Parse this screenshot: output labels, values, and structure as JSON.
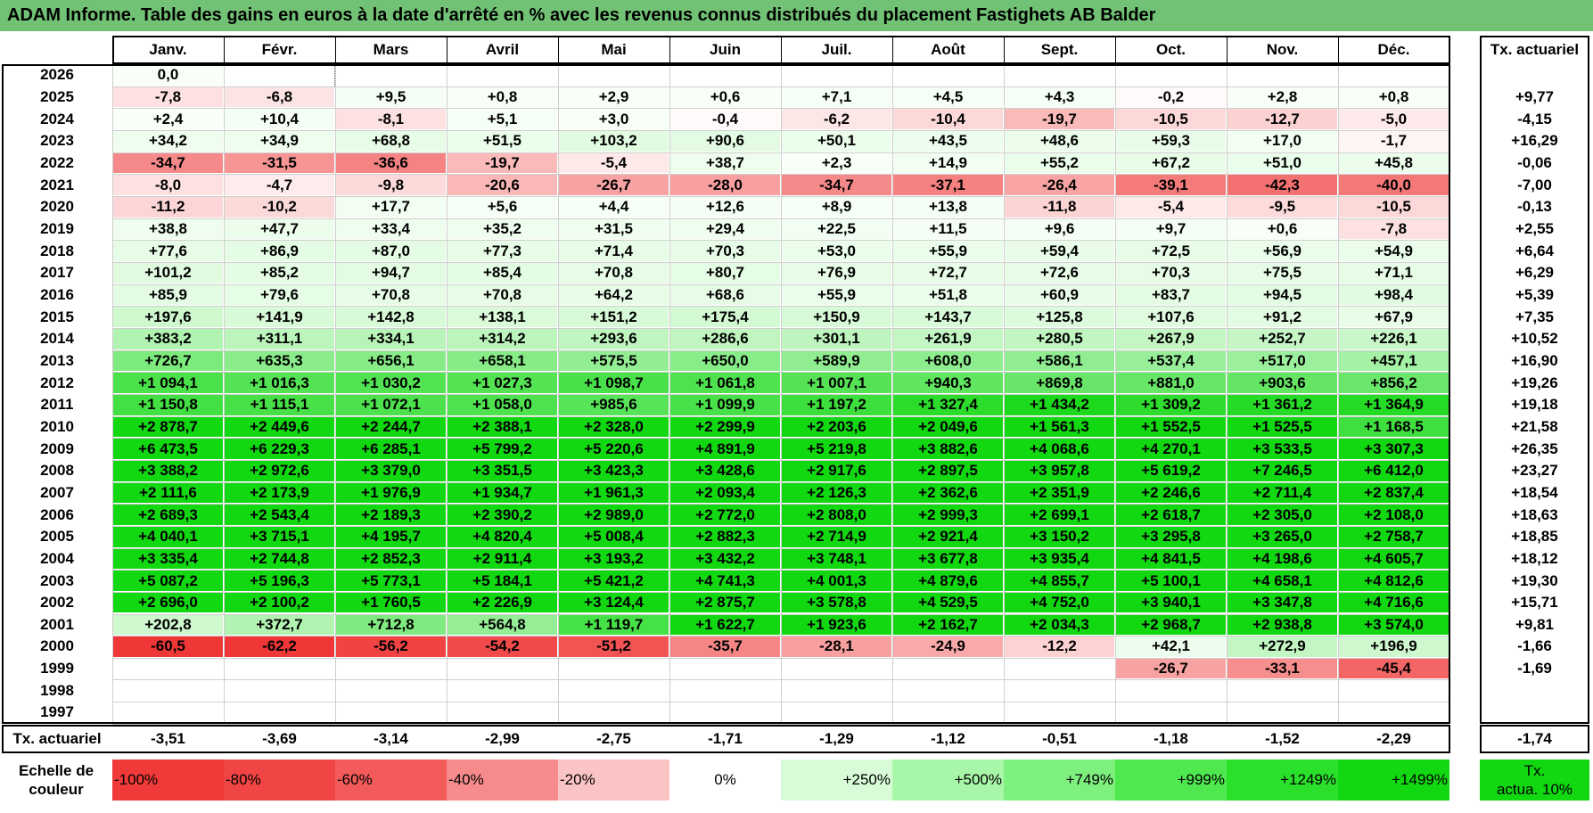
{
  "title": "ADAM Informe. Table des gains en euros à la date d'arrêté en % avec les revenus connus distribués du placement Fastighets AB Balder",
  "months": [
    "Janv.",
    "Févr.",
    "Mars",
    "Avril",
    "Mai",
    "Juin",
    "Juil.",
    "Août",
    "Sept.",
    "Oct.",
    "Nov.",
    "Déc."
  ],
  "annual_header": "Tx. actuariel",
  "rows": [
    {
      "year": "2026",
      "values": [
        "0,0",
        null,
        null,
        null,
        null,
        null,
        null,
        null,
        null,
        null,
        null,
        null
      ],
      "annual": ""
    },
    {
      "year": "2025",
      "values": [
        "-7,8",
        "-6,8",
        "+9,5",
        "+0,8",
        "+2,9",
        "+0,6",
        "+7,1",
        "+4,5",
        "+4,3",
        "-0,2",
        "+2,8",
        "+0,8"
      ],
      "annual": "+9,77"
    },
    {
      "year": "2024",
      "values": [
        "+2,4",
        "+10,4",
        "-8,1",
        "+5,1",
        "+3,0",
        "-0,4",
        "-6,2",
        "-10,4",
        "-19,7",
        "-10,5",
        "-12,7",
        "-5,0"
      ],
      "annual": "-4,15"
    },
    {
      "year": "2023",
      "values": [
        "+34,2",
        "+34,9",
        "+68,8",
        "+51,5",
        "+103,2",
        "+90,6",
        "+50,1",
        "+43,5",
        "+48,6",
        "+59,3",
        "+17,0",
        "-1,7"
      ],
      "annual": "+16,29"
    },
    {
      "year": "2022",
      "values": [
        "-34,7",
        "-31,5",
        "-36,6",
        "-19,7",
        "-5,4",
        "+38,7",
        "+2,3",
        "+14,9",
        "+55,2",
        "+67,2",
        "+51,0",
        "+45,8"
      ],
      "annual": "-0,06"
    },
    {
      "year": "2021",
      "values": [
        "-8,0",
        "-4,7",
        "-9,8",
        "-20,6",
        "-26,7",
        "-28,0",
        "-34,7",
        "-37,1",
        "-26,4",
        "-39,1",
        "-42,3",
        "-40,0"
      ],
      "annual": "-7,00"
    },
    {
      "year": "2020",
      "values": [
        "-11,2",
        "-10,2",
        "+17,7",
        "+5,6",
        "+4,4",
        "+12,6",
        "+8,9",
        "+13,8",
        "-11,8",
        "-5,4",
        "-9,5",
        "-10,5"
      ],
      "annual": "-0,13"
    },
    {
      "year": "2019",
      "values": [
        "+38,8",
        "+47,7",
        "+33,4",
        "+35,2",
        "+31,5",
        "+29,4",
        "+22,5",
        "+11,5",
        "+9,6",
        "+9,7",
        "+0,6",
        "-7,8"
      ],
      "annual": "+2,55"
    },
    {
      "year": "2018",
      "values": [
        "+77,6",
        "+86,9",
        "+87,0",
        "+77,3",
        "+71,4",
        "+70,3",
        "+53,0",
        "+55,9",
        "+59,4",
        "+72,5",
        "+56,9",
        "+54,9"
      ],
      "annual": "+6,64"
    },
    {
      "year": "2017",
      "values": [
        "+101,2",
        "+85,2",
        "+94,7",
        "+85,4",
        "+70,8",
        "+80,7",
        "+76,9",
        "+72,7",
        "+72,6",
        "+70,3",
        "+75,5",
        "+71,1"
      ],
      "annual": "+6,29"
    },
    {
      "year": "2016",
      "values": [
        "+85,9",
        "+79,6",
        "+70,8",
        "+70,8",
        "+64,2",
        "+68,6",
        "+55,9",
        "+51,8",
        "+60,9",
        "+83,7",
        "+94,5",
        "+98,4"
      ],
      "annual": "+5,39"
    },
    {
      "year": "2015",
      "values": [
        "+197,6",
        "+141,9",
        "+142,8",
        "+138,1",
        "+151,2",
        "+175,4",
        "+150,9",
        "+143,7",
        "+125,8",
        "+107,6",
        "+91,2",
        "+67,9"
      ],
      "annual": "+7,35"
    },
    {
      "year": "2014",
      "values": [
        "+383,2",
        "+311,1",
        "+334,1",
        "+314,2",
        "+293,6",
        "+286,6",
        "+301,1",
        "+261,9",
        "+280,5",
        "+267,9",
        "+252,7",
        "+226,1"
      ],
      "annual": "+10,52"
    },
    {
      "year": "2013",
      "values": [
        "+726,7",
        "+635,3",
        "+656,1",
        "+658,1",
        "+575,5",
        "+650,0",
        "+589,9",
        "+608,0",
        "+586,1",
        "+537,4",
        "+517,0",
        "+457,1"
      ],
      "annual": "+16,90"
    },
    {
      "year": "2012",
      "values": [
        "+1 094,1",
        "+1 016,3",
        "+1 030,2",
        "+1 027,3",
        "+1 098,7",
        "+1 061,8",
        "+1 007,1",
        "+940,3",
        "+869,8",
        "+881,0",
        "+903,6",
        "+856,2"
      ],
      "annual": "+19,26"
    },
    {
      "year": "2011",
      "values": [
        "+1 150,8",
        "+1 115,1",
        "+1 072,1",
        "+1 058,0",
        "+985,6",
        "+1 099,9",
        "+1 197,2",
        "+1 327,4",
        "+1 434,2",
        "+1 309,2",
        "+1 361,2",
        "+1 364,9"
      ],
      "annual": "+19,18"
    },
    {
      "year": "2010",
      "values": [
        "+2 878,7",
        "+2 449,6",
        "+2 244,7",
        "+2 388,1",
        "+2 328,0",
        "+2 299,9",
        "+2 203,6",
        "+2 049,6",
        "+1 561,3",
        "+1 552,5",
        "+1 525,5",
        "+1 168,5"
      ],
      "annual": "+21,58"
    },
    {
      "year": "2009",
      "values": [
        "+6 473,5",
        "+6 229,3",
        "+6 285,1",
        "+5 799,2",
        "+5 220,6",
        "+4 891,9",
        "+5 219,8",
        "+3 882,6",
        "+4 068,6",
        "+4 270,1",
        "+3 533,5",
        "+3 307,3"
      ],
      "annual": "+26,35"
    },
    {
      "year": "2008",
      "values": [
        "+3 388,2",
        "+2 972,6",
        "+3 379,0",
        "+3 351,5",
        "+3 423,3",
        "+3 428,6",
        "+2 917,6",
        "+2 897,5",
        "+3 957,8",
        "+5 619,2",
        "+7 246,5",
        "+6 412,0"
      ],
      "annual": "+23,27"
    },
    {
      "year": "2007",
      "values": [
        "+2 111,6",
        "+2 173,9",
        "+1 976,9",
        "+1 934,7",
        "+1 961,3",
        "+2 093,4",
        "+2 126,3",
        "+2 362,6",
        "+2 351,9",
        "+2 246,6",
        "+2 711,4",
        "+2 837,4"
      ],
      "annual": "+18,54"
    },
    {
      "year": "2006",
      "values": [
        "+2 689,3",
        "+2 543,4",
        "+2 189,3",
        "+2 390,2",
        "+2 989,0",
        "+2 772,0",
        "+2 808,0",
        "+2 999,3",
        "+2 699,1",
        "+2 618,7",
        "+2 305,0",
        "+2 108,0"
      ],
      "annual": "+18,63"
    },
    {
      "year": "2005",
      "values": [
        "+4 040,1",
        "+3 715,1",
        "+4 195,7",
        "+4 820,4",
        "+5 008,4",
        "+2 882,3",
        "+2 714,9",
        "+2 921,4",
        "+3 150,2",
        "+3 295,8",
        "+3 265,0",
        "+2 758,7"
      ],
      "annual": "+18,85"
    },
    {
      "year": "2004",
      "values": [
        "+3 335,4",
        "+2 744,8",
        "+2 852,3",
        "+2 911,4",
        "+3 193,2",
        "+3 432,2",
        "+3 748,1",
        "+3 677,8",
        "+3 935,4",
        "+4 841,5",
        "+4 198,6",
        "+4 605,7"
      ],
      "annual": "+18,12"
    },
    {
      "year": "2003",
      "values": [
        "+5 087,2",
        "+5 196,3",
        "+5 773,1",
        "+5 184,1",
        "+5 421,2",
        "+4 741,3",
        "+4 001,3",
        "+4 879,6",
        "+4 855,7",
        "+5 100,1",
        "+4 658,1",
        "+4 812,6"
      ],
      "annual": "+19,30"
    },
    {
      "year": "2002",
      "values": [
        "+2 696,0",
        "+2 100,2",
        "+1 760,5",
        "+2 226,9",
        "+3 124,4",
        "+2 875,7",
        "+3 578,8",
        "+4 529,5",
        "+4 752,0",
        "+3 940,1",
        "+3 347,8",
        "+4 716,6"
      ],
      "annual": "+15,71"
    },
    {
      "year": "2001",
      "values": [
        "+202,8",
        "+372,7",
        "+712,8",
        "+564,8",
        "+1 119,7",
        "+1 622,7",
        "+1 923,6",
        "+2 162,7",
        "+2 034,3",
        "+2 968,7",
        "+2 938,8",
        "+3 574,0"
      ],
      "annual": "+9,81"
    },
    {
      "year": "2000",
      "values": [
        "-60,5",
        "-62,2",
        "-56,2",
        "-54,2",
        "-51,2",
        "-35,7",
        "-28,1",
        "-24,9",
        "-12,2",
        "+42,1",
        "+272,9",
        "+196,9"
      ],
      "annual": "-1,66"
    },
    {
      "year": "1999",
      "values": [
        null,
        null,
        null,
        null,
        null,
        null,
        null,
        null,
        null,
        "-26,7",
        "-33,1",
        "-45,4"
      ],
      "annual": "-1,69"
    },
    {
      "year": "1998",
      "values": [
        null,
        null,
        null,
        null,
        null,
        null,
        null,
        null,
        null,
        null,
        null,
        null
      ],
      "annual": ""
    },
    {
      "year": "1997",
      "values": [
        null,
        null,
        null,
        null,
        null,
        null,
        null,
        null,
        null,
        null,
        null,
        null
      ],
      "annual": ""
    }
  ],
  "footer": {
    "label": "Tx. actuariel",
    "values": [
      "-3,51",
      "-3,69",
      "-3,14",
      "-2,99",
      "-2,75",
      "-1,71",
      "-1,29",
      "-1,12",
      "-0,51",
      "-1,18",
      "-1,52",
      "-2,29"
    ],
    "annual": "-1,74"
  },
  "legend": {
    "label_line1": "Echelle de",
    "label_line2": "couleur",
    "items": [
      {
        "label": "-100%",
        "color": "#f03a3a",
        "align": "left"
      },
      {
        "label": "-80%",
        "color": "#f14545",
        "align": "left"
      },
      {
        "label": "-60%",
        "color": "#f35a5a",
        "align": "left"
      },
      {
        "label": "-40%",
        "color": "#f78b8b",
        "align": "left"
      },
      {
        "label": "-20%",
        "color": "#fbc4c4",
        "align": "left"
      },
      {
        "label": "0%",
        "color": "#ffffff",
        "align": "center"
      },
      {
        "label": "+250%",
        "color": "#d8fcd8",
        "align": "right"
      },
      {
        "label": "+500%",
        "color": "#a8f7a8",
        "align": "right"
      },
      {
        "label": "+749%",
        "color": "#7ef07e",
        "align": "right"
      },
      {
        "label": "+999%",
        "color": "#4fe84f",
        "align": "right"
      },
      {
        "label": "+1249%",
        "color": "#2ae02a",
        "align": "right"
      },
      {
        "label": "+1499%",
        "color": "#12d812",
        "align": "right"
      }
    ],
    "annual_line1": "Tx.",
    "annual_line2": "actua. 10%",
    "annual_color": "#12d812"
  }
}
